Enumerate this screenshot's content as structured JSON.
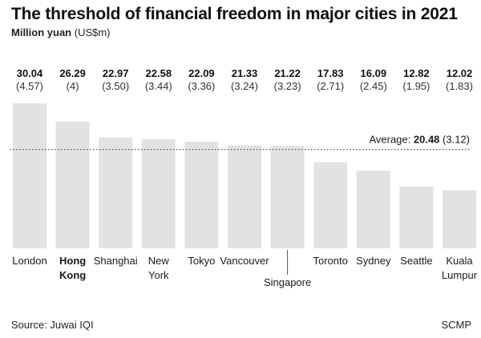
{
  "title": "The threshold of financial freedom in major cities in 2021",
  "subtitle_bold": "Million yuan",
  "subtitle_rest": " (US$m)",
  "source": "Source: Juwai IQI",
  "credit": "SCMP",
  "colors": {
    "bar": "#e2e2e2",
    "average_line": "#555555",
    "text": "#1a1a1a",
    "background": "#ffffff"
  },
  "chart_data": {
    "type": "bar",
    "title": "The threshold of financial freedom in major cities in 2021",
    "ylabel": "Million yuan (US$m)",
    "categories": [
      "London",
      "Hong Kong",
      "Shanghai",
      "New York",
      "Tokyo",
      "Vancouver",
      "Singapore",
      "Toronto",
      "Sydney",
      "Seattle",
      "Kuala Lumpur"
    ],
    "category_lines": [
      [
        "London"
      ],
      [
        "Hong",
        "Kong"
      ],
      [
        "Shanghai"
      ],
      [
        "New",
        "York"
      ],
      [
        "Tokyo"
      ],
      [
        "Vancouver"
      ],
      [
        "Singapore"
      ],
      [
        "Toronto"
      ],
      [
        "Sydney"
      ],
      [
        "Seattle"
      ],
      [
        "Kuala",
        "Lumpur"
      ]
    ],
    "highlighted_category": "Hong Kong",
    "values": [
      30.04,
      26.29,
      22.97,
      22.58,
      22.09,
      21.33,
      21.22,
      17.83,
      16.09,
      12.82,
      12.02
    ],
    "value_labels": [
      "30.04",
      "26.29",
      "22.97",
      "22.58",
      "22.09",
      "21.33",
      "21.22",
      "17.83",
      "16.09",
      "12.82",
      "12.02"
    ],
    "usd_labels": [
      "(4.57)",
      "(4)",
      "(3.50)",
      "(3.44)",
      "(3.36)",
      "(3.24)",
      "(3.23)",
      "(2.71)",
      "(2.45)",
      "(1.95)",
      "(1.83)"
    ],
    "average": {
      "prefix": "Average: ",
      "value": 20.48,
      "value_label": "20.48",
      "usd_label": " (3.12)"
    },
    "ylim": [
      0,
      30.04
    ],
    "grid": false,
    "legend": "none"
  }
}
